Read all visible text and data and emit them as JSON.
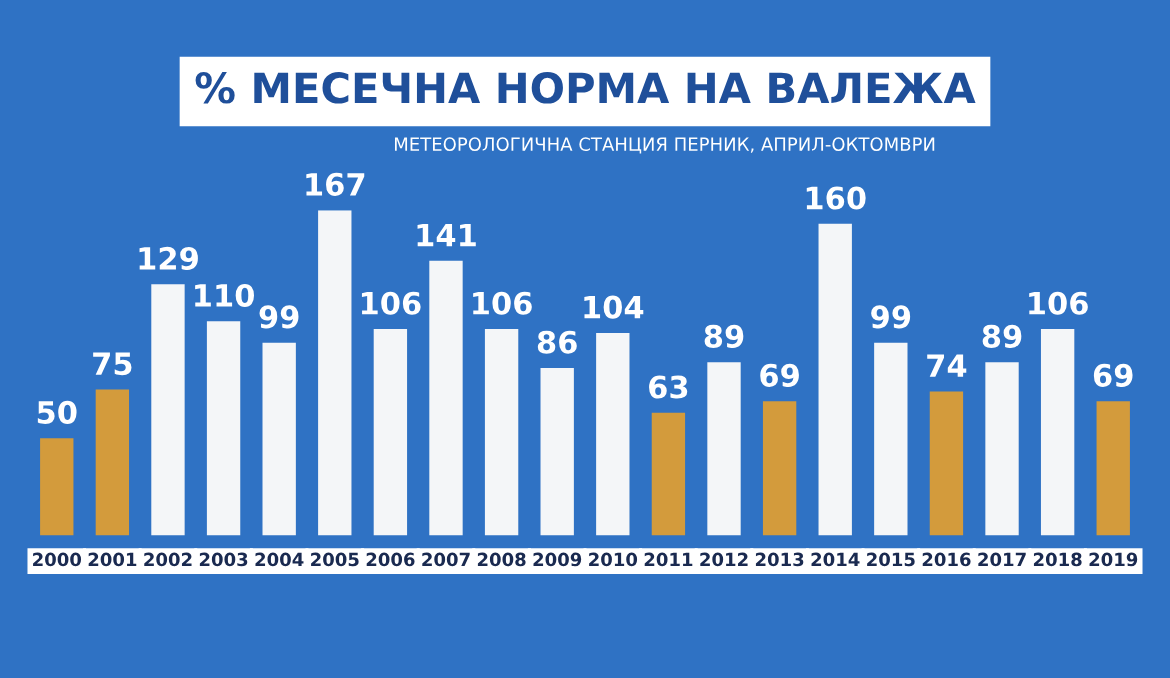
{
  "chart_data": {
    "type": "bar",
    "title": "% МЕСЕЧНА НОРМА НА ВАЛЕЖА",
    "subtitle": "МЕТЕОРОЛОГИЧНА СТАНЦИЯ ПЕРНИК, АПРИЛ-ОКТОМВРИ",
    "categories": [
      "2000",
      "2001",
      "2002",
      "2003",
      "2004",
      "2005",
      "2006",
      "2007",
      "2008",
      "2009",
      "2010",
      "2011",
      "2012",
      "2013",
      "2014",
      "2015",
      "2016",
      "2017",
      "2018",
      "2019"
    ],
    "values": [
      50,
      75,
      129,
      110,
      99,
      167,
      106,
      141,
      106,
      86,
      104,
      63,
      89,
      69,
      160,
      99,
      74,
      89,
      106,
      69
    ],
    "colors": [
      "#d39b3c",
      "#d39b3c",
      "#f4f6f8",
      "#f4f6f8",
      "#f4f6f8",
      "#f4f6f8",
      "#f4f6f8",
      "#f4f6f8",
      "#f4f6f8",
      "#f4f6f8",
      "#f4f6f8",
      "#d39b3c",
      "#f4f6f8",
      "#d39b3c",
      "#f4f6f8",
      "#f4f6f8",
      "#d39b3c",
      "#f4f6f8",
      "#f4f6f8",
      "#d39b3c"
    ],
    "data_labels": true,
    "grid": false,
    "legend": false
  }
}
